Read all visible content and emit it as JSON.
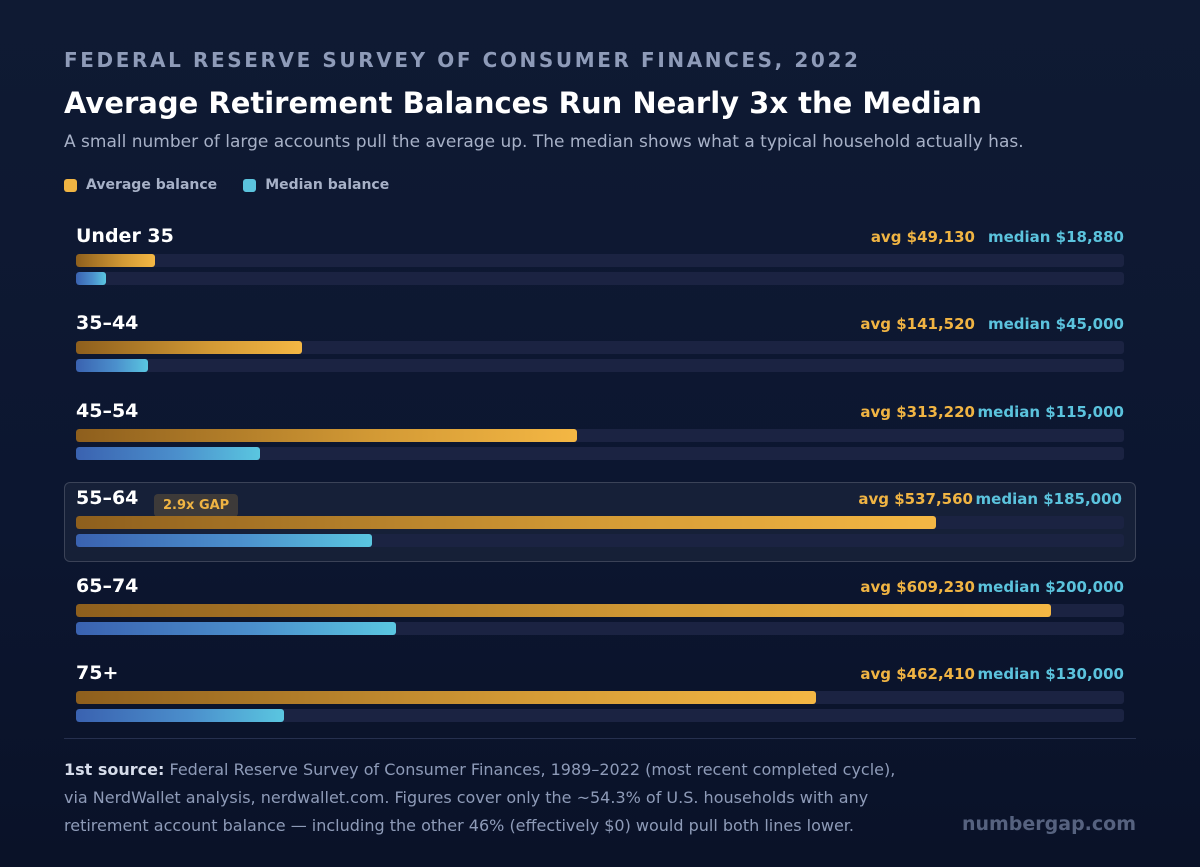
{
  "header": {
    "eyebrow": "FEDERAL RESERVE SURVEY OF CONSUMER FINANCES, 2022",
    "title": "Average Retirement Balances Run Nearly 3x the Median",
    "subtitle": "A small number of large accounts pull the average up. The median shows what a typical household actually has."
  },
  "colors": {
    "average": "#f0b443",
    "median": "#5bc3dd",
    "track": "#1b2342",
    "background": "#0f1a33"
  },
  "chart_data": {
    "type": "bar",
    "orientation": "horizontal",
    "title": "Average Retirement Balances Run Nearly 3x the Median",
    "subtitle": "A small number of large accounts pull the average up. The median shows what a typical household actually has.",
    "xlabel": "",
    "ylabel": "",
    "xlim": [
      0,
      655000
    ],
    "grid": false,
    "legend_position": "top-left",
    "categories": [
      "Under 35",
      "35–44",
      "45–54",
      "55–64",
      "65–74",
      "75+"
    ],
    "series": [
      {
        "name": "Average balance",
        "color": "#f0b443",
        "values": [
          49130,
          141520,
          313220,
          537560,
          609230,
          462410
        ],
        "labels": [
          "avg $49,130",
          "avg $141,520",
          "avg $313,220",
          "avg $537,560",
          "avg $609,230",
          "avg $462,410"
        ]
      },
      {
        "name": "Median balance",
        "color": "#5bc3dd",
        "values": [
          18880,
          45000,
          115000,
          185000,
          200000,
          130000
        ],
        "labels": [
          "median $18,880",
          "median $45,000",
          "median $115,000",
          "median $185,000",
          "median $200,000",
          "median $130,000"
        ]
      }
    ],
    "highlight": {
      "category": "55–64",
      "badge": "2.9x GAP"
    }
  },
  "footer": {
    "source_label": "1st source:",
    "source_text": "Federal Reserve Survey of Consumer Finances, 1989–2022 (most recent completed cycle), via NerdWallet analysis, nerdwallet.com. Figures cover only the ~54.3% of U.S. households with any retirement account balance — including the other 46% (effectively $0) would pull both lines lower.",
    "brand": "numbergap.com"
  }
}
